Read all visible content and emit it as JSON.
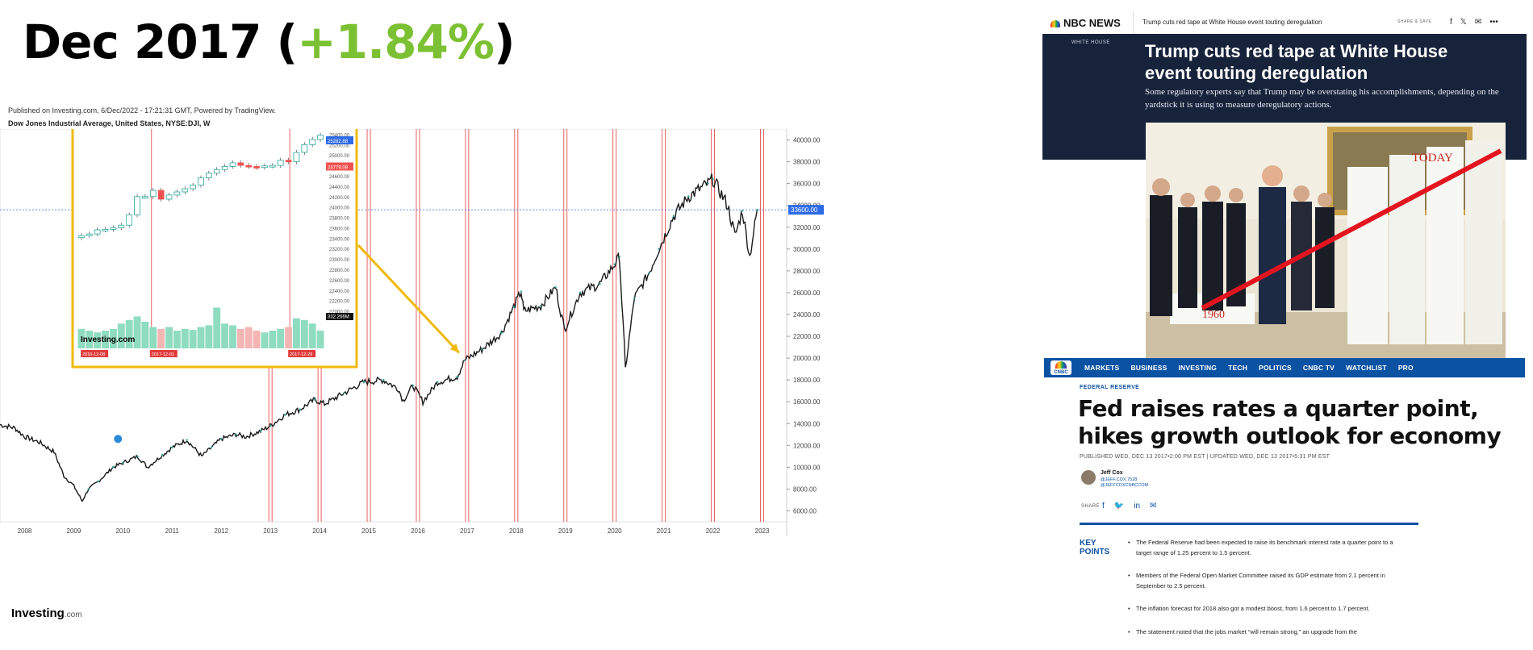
{
  "headline": {
    "prefix": "Dec 2017 (",
    "change": "+1.84%",
    "suffix": ")"
  },
  "colors": {
    "accent_green": "#7cc133",
    "inset_border": "#f0b90b",
    "arrow": "#f0b90b",
    "event_line": "#e03b3b",
    "up_candle": "#26a69a",
    "down_candle": "#ef5350",
    "price_tag": "#2e6be6"
  },
  "chart_header": {
    "published": "Published on Investing.com, 6/Dec/2022 - 17:21:31 GMT, Powered by TradingView.",
    "symbol": "Dow Jones Industrial Average, United States, NYSE:DJI, W"
  },
  "chart_data": [
    {
      "type": "line",
      "title": "Dow Jones Industrial Average, United States, NYSE:DJI, W",
      "x_ticks": [
        "2008",
        "2009",
        "2010",
        "2011",
        "2012",
        "2013",
        "2014",
        "2015",
        "2016",
        "2017",
        "2018",
        "2019",
        "2020",
        "2021",
        "2022",
        "2023"
      ],
      "y_ticks": [
        "6000.00",
        "8000.00",
        "10000.00",
        "12000.00",
        "14000.00",
        "16000.00",
        "18000.00",
        "20000.00",
        "22000.00",
        "24000.00",
        "26000.00",
        "28000.00",
        "30000.00",
        "32000.00",
        "34000.00",
        "36000.00",
        "38000.00",
        "40000.00"
      ],
      "ylim": [
        5000,
        41000
      ],
      "xlim": [
        2007.5,
        2023.5
      ],
      "points": [
        [
          2007.5,
          13900
        ],
        [
          2007.8,
          13600
        ],
        [
          2008.0,
          12800
        ],
        [
          2008.3,
          12300
        ],
        [
          2008.6,
          11400
        ],
        [
          2008.8,
          9200
        ],
        [
          2009.0,
          8300
        ],
        [
          2009.17,
          6900
        ],
        [
          2009.3,
          8000
        ],
        [
          2009.5,
          8700
        ],
        [
          2009.8,
          10000
        ],
        [
          2010.0,
          10400
        ],
        [
          2010.3,
          11000
        ],
        [
          2010.5,
          10000
        ],
        [
          2010.8,
          11100
        ],
        [
          2011.0,
          11800
        ],
        [
          2011.3,
          12500
        ],
        [
          2011.6,
          11000
        ],
        [
          2011.8,
          11800
        ],
        [
          2012.0,
          12600
        ],
        [
          2012.3,
          13000
        ],
        [
          2012.5,
          12800
        ],
        [
          2012.8,
          13300
        ],
        [
          2013.0,
          13800
        ],
        [
          2013.3,
          14800
        ],
        [
          2013.6,
          15300
        ],
        [
          2013.9,
          16200
        ],
        [
          2014.1,
          15800
        ],
        [
          2014.5,
          16800
        ],
        [
          2014.9,
          17800
        ],
        [
          2015.3,
          18000
        ],
        [
          2015.6,
          17200
        ],
        [
          2015.7,
          16100
        ],
        [
          2015.9,
          17500
        ],
        [
          2016.1,
          16000
        ],
        [
          2016.4,
          17800
        ],
        [
          2016.8,
          18300
        ],
        [
          2016.95,
          19800
        ],
        [
          2017.3,
          20800
        ],
        [
          2017.7,
          22300
        ],
        [
          2017.95,
          24700
        ],
        [
          2018.1,
          26100
        ],
        [
          2018.15,
          24300
        ],
        [
          2018.5,
          24800
        ],
        [
          2018.8,
          26500
        ],
        [
          2018.98,
          22600
        ],
        [
          2019.3,
          26000
        ],
        [
          2019.7,
          26800
        ],
        [
          2020.0,
          28600
        ],
        [
          2020.1,
          29300
        ],
        [
          2020.22,
          19000
        ],
        [
          2020.4,
          25500
        ],
        [
          2020.7,
          27800
        ],
        [
          2020.9,
          30000
        ],
        [
          2021.2,
          33000
        ],
        [
          2021.5,
          34800
        ],
        [
          2021.9,
          36000
        ],
        [
          2022.0,
          36400
        ],
        [
          2022.3,
          34000
        ],
        [
          2022.45,
          31200
        ],
        [
          2022.6,
          33500
        ],
        [
          2022.75,
          29300
        ],
        [
          2022.9,
          33600
        ]
      ],
      "last_value": "33600.00",
      "event_markers": [
        2013.0,
        2014.0,
        2015.0,
        2016.0,
        2017.0,
        2018.0,
        2019.0,
        2020.0,
        2021.0,
        2022.0,
        2023.0
      ]
    },
    {
      "type": "bar",
      "title": "inset weekly candles",
      "y_ticks": [
        "22000.00",
        "22200.00",
        "22400.00",
        "22600.00",
        "22800.00",
        "23000.00",
        "23200.00",
        "23400.00",
        "23600.00",
        "23800.00",
        "24000.00",
        "24200.00",
        "24400.00",
        "24600.00",
        "24800.00",
        "25000.00",
        "25200.00",
        "25400.00"
      ],
      "ylim": [
        21900,
        25500
      ],
      "closes": [
        23450,
        23480,
        23560,
        23570,
        23600,
        23650,
        23850,
        24200,
        24200,
        24320,
        24150,
        24230,
        24290,
        24350,
        24420,
        24560,
        24650,
        24720,
        24780,
        24850,
        24800,
        24780,
        24760,
        24790,
        24800,
        24900,
        24870,
        25050,
        25200,
        25300,
        25380
      ],
      "volume": [
        0.55,
        0.5,
        0.45,
        0.5,
        0.55,
        0.7,
        0.8,
        0.9,
        0.75,
        0.6,
        0.55,
        0.6,
        0.5,
        0.55,
        0.52,
        0.6,
        0.65,
        1.15,
        0.7,
        0.65,
        0.55,
        0.6,
        0.5,
        0.45,
        0.5,
        0.55,
        0.6,
        0.85,
        0.8,
        0.7,
        0.5
      ],
      "volume_label": "332.266M",
      "price_tags": [
        "25282.88",
        "24779.09"
      ],
      "date_labels": [
        "2016-12-08",
        "2017-12-01",
        "2017-12-29"
      ]
    }
  ],
  "logo": {
    "name": "Investing",
    "suffix": ".com"
  },
  "nbc": {
    "brand": "NBC NEWS",
    "bar_title": "Trump cuts red tape at White House event touting deregulation",
    "share": "SHARE & SAVE",
    "section": "WHITE HOUSE",
    "title": "Trump cuts red tape at White House event touting deregulation",
    "dek": "Some regulatory experts say that Trump may be overstating his accomplishments, depending on the yardstick it is using to measure deregulatory actions.",
    "photo_labels": {
      "left": "1960",
      "right": "TODAY"
    }
  },
  "cnbc": {
    "logo": "CNBC",
    "nav": [
      "MARKETS",
      "BUSINESS",
      "INVESTING",
      "TECH",
      "POLITICS",
      "CNBC TV",
      "WATCHLIST",
      "PRO"
    ],
    "kicker": "FEDERAL RESERVE",
    "title": "Fed raises rates a quarter point, hikes growth outlook for economy",
    "dateline": "PUBLISHED WED, DEC 13 2017•2:00 PM EST | UPDATED WED, DEC 13 2017•5:31 PM EST",
    "author": {
      "name": "Jeff Cox",
      "handle1": "@JEFF.COX.7528",
      "handle2": "@JEFFCOXCNBCCOM"
    },
    "share_label": "SHARE",
    "key_points_label": "KEY POINTS",
    "points": [
      "The Federal Reserve had been expected to raise its benchmark interest rate a quarter point to a target range of 1.25 percent to 1.5 percent.",
      "Members of the Federal Open Market Committee raised its GDP estimate from 2.1 percent in September to 2.5 percent.",
      "The inflation forecast for 2018 also got a modest boost, from 1.6 percent to 1.7 percent.",
      "The statement noted that the jobs market “will remain strong,” an upgrade from the"
    ]
  }
}
